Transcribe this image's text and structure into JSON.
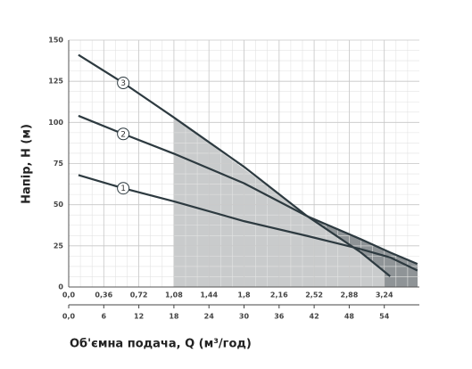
{
  "chart_data": {
    "type": "line",
    "x_label": "Об'ємна подача, Q (м³/год)",
    "y_label": "Напір, Н (м)",
    "x": [
      0.1,
      0.56,
      1.08,
      1.8,
      2.45,
      3.0,
      3.3,
      3.58
    ],
    "series": [
      {
        "name": "1",
        "color": "#2d3a40",
        "values": [
          68,
          60,
          52,
          40,
          31,
          23,
          18,
          10
        ]
      },
      {
        "name": "2",
        "color": "#2d3a40",
        "values": [
          104,
          93,
          81,
          63,
          43,
          29,
          21,
          14
        ]
      },
      {
        "name": "3",
        "color": "#2d3a40",
        "values": [
          141,
          124,
          103,
          73,
          43,
          21,
          6.5,
          null
        ]
      }
    ],
    "xlim": [
      0,
      3.6
    ],
    "xticks": [
      {
        "value": 0,
        "label": "0,0"
      },
      {
        "value": 0.36,
        "label": "0,36"
      },
      {
        "value": 0.72,
        "label": "0,72"
      },
      {
        "value": 1.08,
        "label": "1,08"
      },
      {
        "value": 1.44,
        "label": "1,44"
      },
      {
        "value": 1.8,
        "label": "1,8"
      },
      {
        "value": 2.16,
        "label": "2,16"
      },
      {
        "value": 2.52,
        "label": "2,52"
      },
      {
        "value": 2.88,
        "label": "2,88"
      },
      {
        "value": 3.24,
        "label": "3,24"
      }
    ],
    "x2lim": [
      0,
      60
    ],
    "x2ticks": [
      {
        "value": 0,
        "label": "0,0"
      },
      6,
      12,
      18,
      24,
      30,
      36,
      42,
      48,
      54
    ],
    "ylim": [
      0,
      150
    ],
    "yticks": [
      0,
      25,
      50,
      75,
      100,
      125,
      150
    ],
    "grid": true
  }
}
